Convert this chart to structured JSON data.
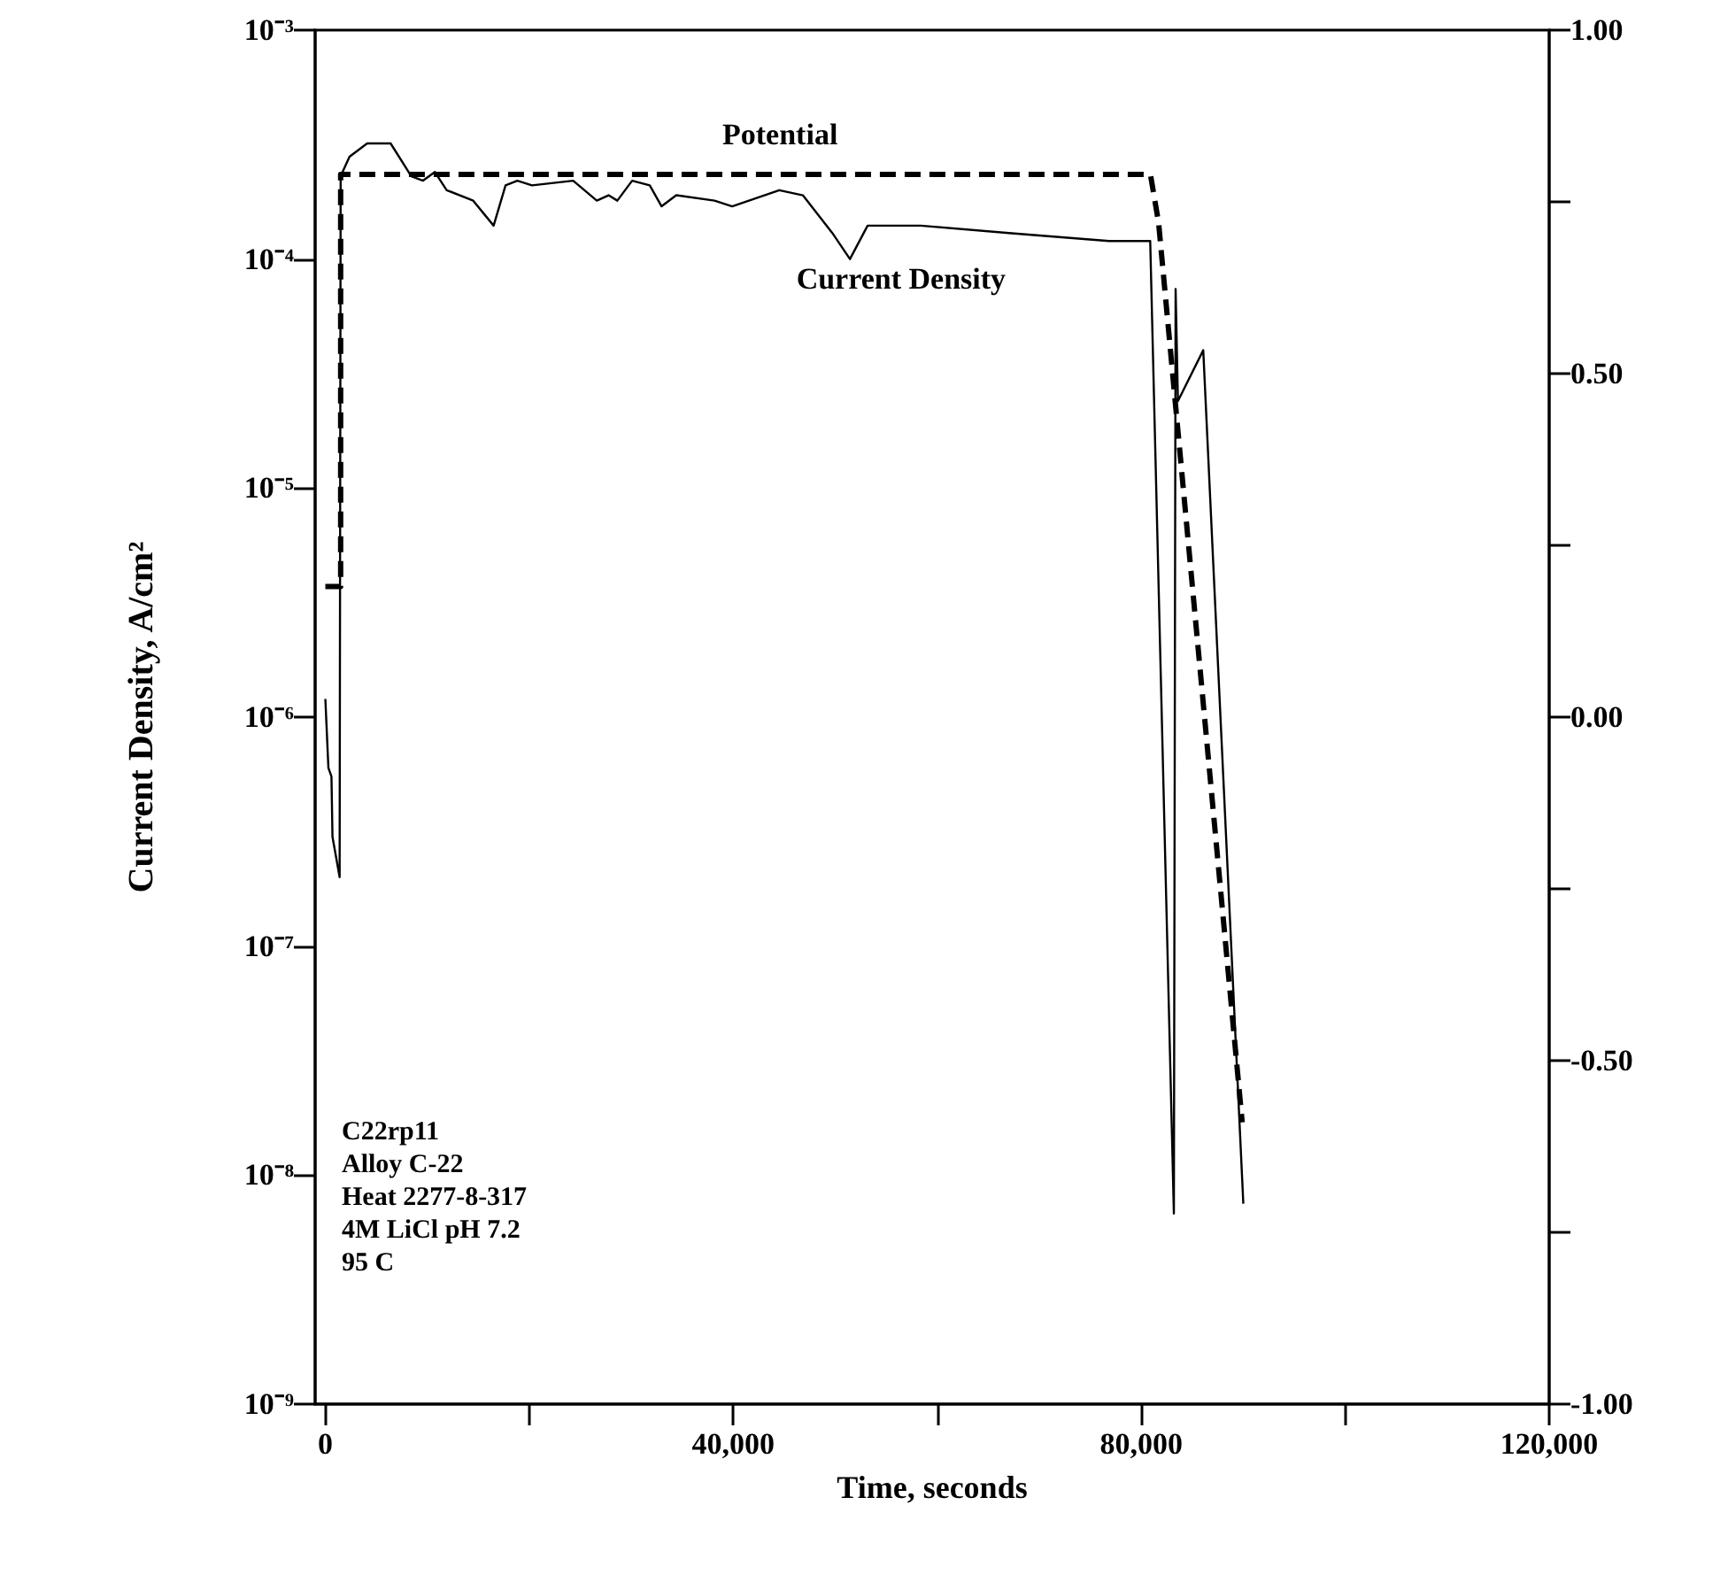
{
  "chart_data": {
    "type": "line",
    "xlabel": "Time, seconds",
    "ylabel": "Current Density, A/cm²",
    "log": "y",
    "grid": false,
    "legend": false,
    "marker": "none",
    "xlim": [
      -1000,
      120000
    ],
    "xticks": [
      0,
      {
        "value": 20000,
        "label": null
      },
      {
        "value": 40000,
        "label": "40,000"
      },
      {
        "value": 60000,
        "label": null
      },
      {
        "value": 80000,
        "label": "80,000"
      },
      {
        "value": 100000,
        "label": null
      },
      {
        "value": 120000,
        "label": "120,000"
      }
    ],
    "ylim": [
      1e-09,
      0.001
    ],
    "yticks": [
      {
        "value": 1e-09,
        "label": "10⁻⁹"
      },
      {
        "value": 1e-08,
        "label": "10⁻⁸"
      },
      {
        "value": 1e-07,
        "label": "10⁻⁷"
      },
      {
        "value": 1e-06,
        "label": "10⁻⁶"
      },
      {
        "value": 1e-05,
        "label": "10⁻⁵"
      },
      {
        "value": 0.0001,
        "label": "10⁻⁴"
      },
      {
        "value": 0.001,
        "label": "10⁻³"
      }
    ],
    "y2lim": [
      -1,
      1
    ],
    "y2ticks": [
      {
        "value": -1,
        "label": "-1.00"
      },
      {
        "value": -0.75,
        "label": null
      },
      {
        "value": -0.5,
        "label": "-0.50"
      },
      {
        "value": -0.25,
        "label": null
      },
      {
        "value": 0,
        "label": "0.00"
      },
      {
        "value": 0.25,
        "label": null
      },
      {
        "value": 0.5,
        "label": "0.50"
      },
      {
        "value": 0.75,
        "label": null
      },
      {
        "value": 1,
        "label": "1.00"
      }
    ],
    "series": [
      {
        "name": "Potential",
        "color": "#000000",
        "axis": "y2",
        "line_style": "dashed",
        "x": [
          0,
          1500,
          1500,
          80900,
          81700,
          89900
        ],
        "values": [
          0.19,
          0.19,
          0.79,
          0.79,
          0.72,
          -0.59
        ]
      },
      {
        "name": "Current Density",
        "color": "#000000",
        "line_style": "solid",
        "x": [
          0,
          300,
          600,
          700,
          1400,
          1500,
          2370,
          4100,
          6400,
          8430,
          9580,
          10740,
          11900,
          14500,
          16500,
          17670,
          18830,
          20260,
          24300,
          26620,
          27770,
          28630,
          30080,
          31810,
          32970,
          34410,
          38160,
          39890,
          44510,
          46820,
          49710,
          51440,
          53170,
          58370,
          67030,
          76850,
          80880,
          83200,
          83370,
          83600,
          86080,
          90010
        ],
        "values": [
          1.2e-06,
          6e-07,
          5.5e-07,
          3e-07,
          2e-07,
          0.00023,
          0.00028,
          0.00032,
          0.00032,
          0.00023,
          0.00022,
          0.00024,
          0.0002,
          0.00018,
          0.00014,
          0.00021,
          0.00022,
          0.00021,
          0.00022,
          0.00018,
          0.00019,
          0.00018,
          0.00022,
          0.00021,
          0.00017,
          0.00019,
          0.00018,
          0.00017,
          0.0002,
          0.00019,
          0.00013,
          0.0001,
          0.00014,
          0.00014,
          0.00013,
          0.00012,
          0.00012,
          6.8e-09,
          7.4e-05,
          2.4e-05,
          4e-05,
          7.5e-09
        ]
      }
    ],
    "annotations": [
      "C22rp11",
      "Alloy C-22",
      "Heat 2277-8-317",
      "4M LiCl pH 7.2",
      "95 C"
    ]
  }
}
